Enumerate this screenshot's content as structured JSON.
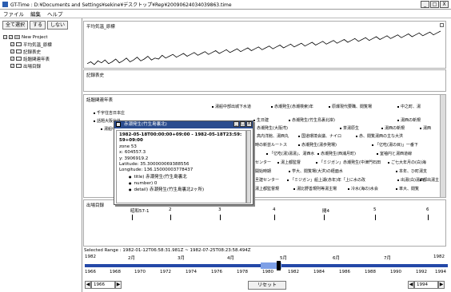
{
  "window": {
    "title": "GT-Time : D:¥Documents and Settings¥sekine¥デスクトップ¥Rep¥20090624034039863.time",
    "minimize": "_",
    "maximize": "□",
    "close": "X"
  },
  "menu": [
    "ファイル",
    "編集",
    "ヘルプ"
  ],
  "left": {
    "buttons": [
      "全て選択",
      "する",
      "しない"
    ],
    "project": "New Project",
    "layers": [
      "平均気温_原標",
      "記録表史",
      "話題関連年表",
      "出場目録"
    ]
  },
  "panels": {
    "p1": {
      "title": "平均気温_原標"
    },
    "p2": {
      "title": "記録表史"
    },
    "p3": {
      "title": "話題関連年表",
      "events": [
        "千宇住吉日本庄",
        "湯船中部出城下水道",
        "赤潮発生(赤潮検索)年",
        "原爆現代要職、閲覧場",
        "中之町、湯",
        "話題大阪北外",
        "生日建",
        "赤潮発生(竹生島裏北岸)",
        "湯西の新規",
        "湯船中部",
        "赤潮発生(大阪湾)",
        "茶湯原生",
        "湯西の新規",
        "湯西",
        "高内洋館、湯西丸",
        "国道環境会議、ナイロ",
        "赤、閲覧湯西の主な大洪",
        "時の新芸ルートス",
        "赤潮発生(湯歩発場)",
        "「亿吃(湯の目)」一番下",
        "「亿吃(湯)湯湯」、湯西水",
        "赤潮発生(西浦月町)",
        "室袖円と湯西道線",
        "センター",
        "湯上都監督",
        "「ミジガン」赤潮発生(中津門石田",
        "ご七大年月の(白)海",
        "開始時期",
        "学大、閲覧場(大洪)の経面水",
        "本年、ひ町湯支",
        "旦建センター",
        "「ミジガン」船上湖(赤年)年「上に水の改",
        "出湯(白)湯西",
        "都出湯主",
        "湯上都監督規",
        "湯比野善規則等湯主場",
        "冷水(海の)水会",
        "率大、閲覧"
      ]
    },
    "p4": {
      "title": "出場目録",
      "epochs": [
        "昭和57-1",
        "2",
        "3",
        "4",
        "閲4",
        "5",
        "6"
      ]
    }
  },
  "footer": {
    "selected_range": "Selected Range : 1982-01-12T06:58:31.981Z ~ 1982-07-25T08:23:58.494Z",
    "range_start_year": "1982",
    "range_end_year": "1982",
    "months": [
      "2月",
      "3月",
      "4月",
      "5月",
      "6月",
      "7月"
    ],
    "years": [
      "1966",
      "1968",
      "1970",
      "1972",
      "1974",
      "1976",
      "1978",
      "1980",
      "1982",
      "1984",
      "1986",
      "1988",
      "1990",
      "1992",
      "1994"
    ],
    "start_box": "1966",
    "end_box": "1994",
    "reset_label": "リセット",
    "left_arrow": "◀",
    "right_arrow": "▶"
  },
  "popup": {
    "title": "赤潮発生(竹生島裏北)",
    "lines": [
      "1982-05-18T00:00:00+09:00 - 1982-05-18T23:59:",
      "59+09:00",
      "zone 53",
      "x: 604557.3",
      "y: 3906919.2",
      "Latitude: 35.300000069388556",
      "Longitude: 136.15000003778437"
    ],
    "bullets": [
      "title) 赤潮発生(竹生島裏北",
      "number) 0",
      "detail) 赤潮発生(竹生島裏北2ヶ所)"
    ]
  },
  "chart_data": {
    "type": "line",
    "title": "平均気温_原標",
    "xlabel": "",
    "ylabel": "",
    "x": [
      0,
      1,
      2,
      3,
      4,
      5,
      6,
      7,
      8,
      9,
      10,
      11,
      12,
      13,
      14,
      15,
      16,
      17,
      18,
      19,
      20,
      21,
      22,
      23,
      24,
      25,
      26,
      27,
      28,
      29,
      30,
      31,
      32,
      33,
      34,
      35,
      36,
      37,
      38,
      39,
      40,
      41,
      42,
      43,
      44,
      45,
      46,
      47,
      48,
      49,
      50,
      51,
      52,
      53,
      54,
      55,
      56,
      57,
      58,
      59,
      60,
      61,
      62,
      63,
      64,
      65,
      66,
      67,
      68,
      69,
      70,
      71,
      72,
      73,
      74,
      75,
      76,
      77,
      78,
      79,
      80,
      81,
      82,
      83,
      84,
      85,
      86,
      87,
      88,
      89,
      90,
      91,
      92,
      93,
      94,
      95,
      96,
      97,
      98,
      99
    ],
    "series": [
      {
        "values": [
          4,
          6,
          3,
          7,
          5,
          8,
          4,
          6,
          9,
          5,
          7,
          10,
          6,
          8,
          11,
          7,
          9,
          12,
          8,
          10,
          9,
          13,
          10,
          12,
          14,
          11,
          13,
          15,
          12,
          14,
          16,
          13,
          15,
          17,
          14,
          16,
          18,
          15,
          17,
          19,
          16,
          18,
          20,
          17,
          19,
          21,
          18,
          20,
          22,
          19,
          21,
          23,
          20,
          22,
          24,
          21,
          23,
          25,
          22,
          24,
          26,
          23,
          25,
          27,
          24,
          26,
          28,
          25,
          27,
          29,
          26,
          28,
          30,
          27,
          29,
          31,
          28,
          30,
          32,
          29,
          31,
          33,
          30,
          32,
          34,
          31,
          33,
          35,
          32,
          34,
          36,
          33,
          35,
          37,
          34,
          36,
          38,
          35,
          37,
          39
        ]
      }
    ]
  }
}
